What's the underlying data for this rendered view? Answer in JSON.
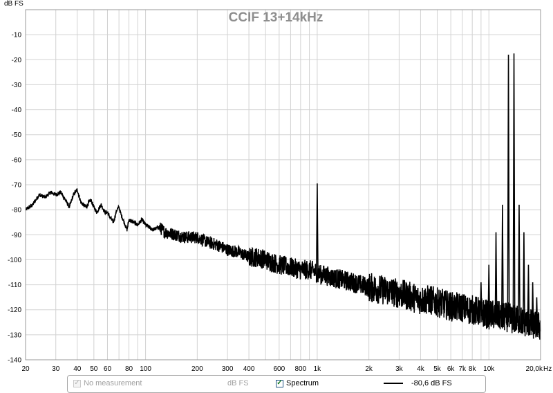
{
  "chart_data": {
    "type": "line",
    "title": "CCIF 13+14kHz",
    "ylabel": "dB FS",
    "xlabel": "Hz",
    "xscale": "log",
    "xlim": [
      20,
      20000
    ],
    "ylim": [
      -140,
      0
    ],
    "grid": true,
    "y_ticks": [
      {
        "value": -10,
        "label": "-10"
      },
      {
        "value": -20,
        "label": "-20"
      },
      {
        "value": -30,
        "label": "-30"
      },
      {
        "value": -40,
        "label": "-40"
      },
      {
        "value": -50,
        "label": "-50"
      },
      {
        "value": -60,
        "label": "-60"
      },
      {
        "value": -70,
        "label": "-70"
      },
      {
        "value": -80,
        "label": "-80"
      },
      {
        "value": -90,
        "label": "-90"
      },
      {
        "value": -100,
        "label": "-100"
      },
      {
        "value": -110,
        "label": "-110"
      },
      {
        "value": -120,
        "label": "-120"
      },
      {
        "value": -130,
        "label": "-130"
      },
      {
        "value": -140,
        "label": "-140"
      }
    ],
    "x_ticks": [
      {
        "value": 20,
        "label": "20"
      },
      {
        "value": 30,
        "label": "30"
      },
      {
        "value": 40,
        "label": "40"
      },
      {
        "value": 50,
        "label": "50"
      },
      {
        "value": 60,
        "label": "60"
      },
      {
        "value": 80,
        "label": "80"
      },
      {
        "value": 100,
        "label": "100"
      },
      {
        "value": 200,
        "label": "200"
      },
      {
        "value": 300,
        "label": "300"
      },
      {
        "value": 400,
        "label": "400"
      },
      {
        "value": 600,
        "label": "600"
      },
      {
        "value": 800,
        "label": "800"
      },
      {
        "value": 1000,
        "label": "1k"
      },
      {
        "value": 2000,
        "label": "2k"
      },
      {
        "value": 3000,
        "label": "3k"
      },
      {
        "value": 4000,
        "label": "4k"
      },
      {
        "value": 5000,
        "label": "5k"
      },
      {
        "value": 6000,
        "label": "6k"
      },
      {
        "value": 7000,
        "label": "7k"
      },
      {
        "value": 8000,
        "label": "8k"
      },
      {
        "value": 10000,
        "label": "10k"
      },
      {
        "value": 20000,
        "label": "20,0k"
      }
    ],
    "x_minor_grid": [
      70,
      90,
      500,
      700,
      900,
      9000
    ],
    "series": [
      {
        "name": "Spectrum",
        "color": "#000000",
        "x": [
          20,
          22,
          24,
          26,
          28,
          30,
          32,
          34,
          36,
          38,
          40,
          42,
          45,
          48,
          50,
          52,
          55,
          58,
          60,
          62,
          65,
          68,
          70,
          72,
          75,
          78,
          80,
          85,
          90,
          95,
          100,
          110,
          120,
          130,
          150,
          170,
          200,
          230,
          260,
          300,
          350,
          400,
          450,
          500,
          600,
          700,
          800,
          900,
          1000,
          1050,
          1100,
          1200,
          1400,
          1600,
          1800,
          2000,
          2400,
          2800,
          3200,
          3600,
          4000,
          4500,
          5000,
          5600,
          6300,
          7000,
          7500,
          8000,
          9000,
          10000,
          11000,
          12000,
          13000,
          14000,
          15000,
          16000,
          17000,
          18000,
          19000,
          20000
        ],
        "values": [
          -80,
          -78,
          -74,
          -75,
          -73,
          -74,
          -73,
          -76,
          -79,
          -74,
          -72,
          -77,
          -79,
          -76,
          -79,
          -81,
          -78,
          -81,
          -81,
          -83,
          -85,
          -80,
          -79,
          -82,
          -85,
          -88,
          -84,
          -85,
          -86,
          -84,
          -86,
          -88,
          -87,
          -89,
          -90,
          -91,
          -91,
          -93,
          -94,
          -96,
          -97,
          -99,
          -99,
          -100,
          -102,
          -103,
          -104,
          -104,
          -105,
          -106,
          -106,
          -107,
          -108,
          -109,
          -110,
          -111,
          -112,
          -113,
          -114,
          -115,
          -116,
          -116,
          -117,
          -118,
          -119,
          -119,
          -120,
          -120,
          -121,
          -122,
          -122,
          -123,
          -123,
          -124,
          -124,
          -125,
          -125,
          -126,
          -126,
          -127
        ]
      }
    ],
    "peaks": [
      {
        "x": 1000,
        "value": -69.5
      },
      {
        "x": 9000,
        "value": -109
      },
      {
        "x": 10000,
        "value": -102
      },
      {
        "x": 11000,
        "value": -89
      },
      {
        "x": 12000,
        "value": -78
      },
      {
        "x": 13000,
        "value": -18
      },
      {
        "x": 14000,
        "value": -17.5
      },
      {
        "x": 15000,
        "value": -78
      },
      {
        "x": 16000,
        "value": -89
      },
      {
        "x": 17000,
        "value": -102
      },
      {
        "x": 18000,
        "value": -109
      },
      {
        "x": 19000,
        "value": -115
      }
    ],
    "legend": {
      "no_measurement_label": "No measurement",
      "units_label": "dB FS",
      "spectrum_label": "Spectrum",
      "level_label": "-80,6 dB FS"
    }
  }
}
